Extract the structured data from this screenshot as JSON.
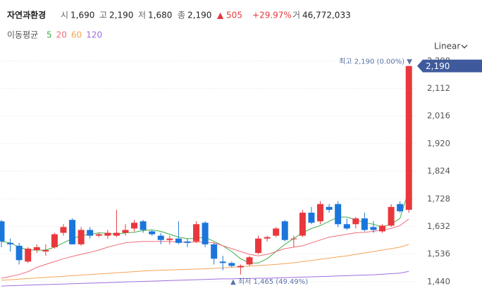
{
  "header": {
    "name": "자연과환경",
    "open_label": "시",
    "open": "1,690",
    "high_label": "고",
    "high": "2,190",
    "low_label": "저",
    "low": "1,680",
    "close_label": "종",
    "close": "2,190",
    "change": "▲ 505",
    "change_pct": "+29.97%",
    "volume_label": "거",
    "volume": "46,772,033"
  },
  "legend_title": "이동평균",
  "scale_menu": "Linear",
  "chart_data": {
    "type": "candlestick",
    "up_color": "#e8383d",
    "down_color": "#1b76db",
    "grid": true,
    "ylim": [
      1408,
      2248
    ],
    "yticks": [
      {
        "value": 1440,
        "label": "1,440"
      },
      {
        "value": 1536,
        "label": "1,536"
      },
      {
        "value": 1632,
        "label": "1,632"
      },
      {
        "value": 1728,
        "label": "1,728"
      },
      {
        "value": 1824,
        "label": "1,824"
      },
      {
        "value": 1920,
        "label": "1,920"
      },
      {
        "value": 2016,
        "label": "2,016"
      },
      {
        "value": 2112,
        "label": "2,112"
      },
      {
        "value": 2208,
        "label": "2,208"
      }
    ],
    "open": [
      1650,
      1575,
      1565,
      1510,
      1550,
      1545,
      1560,
      1610,
      1655,
      1570,
      1620,
      1600,
      1600,
      1600,
      1610,
      1625,
      1650,
      1615,
      1600,
      1585,
      1590,
      1580,
      1580,
      1645,
      1570,
      1510,
      1505,
      1490,
      1500,
      1540,
      1590,
      1600,
      1650,
      1590,
      1600,
      1680,
      1650,
      1700,
      1710,
      1640,
      1640,
      1660,
      1630,
      1615,
      1635,
      1710,
      1690
    ],
    "high": [
      1655,
      1590,
      1575,
      1560,
      1570,
      1570,
      1610,
      1640,
      1660,
      1630,
      1630,
      1610,
      1620,
      1690,
      1640,
      1655,
      1655,
      1620,
      1610,
      1600,
      1650,
      1590,
      1650,
      1650,
      1575,
      1530,
      1510,
      1500,
      1530,
      1600,
      1600,
      1630,
      1655,
      1600,
      1690,
      1700,
      1720,
      1710,
      1720,
      1660,
      1665,
      1680,
      1650,
      1640,
      1710,
      1720,
      2190
    ],
    "low": [
      1560,
      1545,
      1500,
      1505,
      1540,
      1530,
      1555,
      1600,
      1570,
      1565,
      1590,
      1595,
      1590,
      1595,
      1600,
      1615,
      1610,
      1600,
      1570,
      1570,
      1570,
      1560,
      1575,
      1560,
      1500,
      1480,
      1490,
      1465,
      1495,
      1535,
      1580,
      1595,
      1580,
      1560,
      1595,
      1640,
      1640,
      1680,
      1630,
      1620,
      1625,
      1615,
      1610,
      1610,
      1630,
      1680,
      1680
    ],
    "close": [
      1580,
      1570,
      1515,
      1555,
      1560,
      1550,
      1605,
      1630,
      1570,
      1620,
      1600,
      1605,
      1610,
      1610,
      1620,
      1645,
      1620,
      1605,
      1585,
      1590,
      1575,
      1575,
      1640,
      1570,
      1520,
      1505,
      1495,
      1495,
      1525,
      1590,
      1595,
      1625,
      1585,
      1590,
      1680,
      1645,
      1710,
      1690,
      1640,
      1625,
      1660,
      1620,
      1620,
      1635,
      1700,
      1685,
      2190
    ],
    "series": [
      {
        "name": "5",
        "color": "#3fae49",
        "values": [
          1580,
          1575,
          1560,
          1550,
          1550,
          1550,
          1560,
          1575,
          1590,
          1600,
          1605,
          1610,
          1608,
          1605,
          1610,
          1612,
          1618,
          1620,
          1615,
          1605,
          1595,
          1590,
          1590,
          1595,
          1580,
          1565,
          1545,
          1520,
          1505,
          1505,
          1520,
          1545,
          1570,
          1590,
          1610,
          1625,
          1635,
          1650,
          1665,
          1665,
          1655,
          1645,
          1640,
          1630,
          1640,
          1660,
          1760
        ]
      },
      {
        "name": "20",
        "color": "#f06e7a",
        "values": [
          1452,
          1458,
          1465,
          1475,
          1490,
          1500,
          1510,
          1520,
          1528,
          1535,
          1542,
          1550,
          1560,
          1568,
          1575,
          1578,
          1580,
          1580,
          1580,
          1580,
          1578,
          1578,
          1578,
          1578,
          1575,
          1565,
          1555,
          1545,
          1535,
          1530,
          1535,
          1545,
          1555,
          1560,
          1565,
          1575,
          1585,
          1595,
          1600,
          1605,
          1610,
          1612,
          1615,
          1620,
          1625,
          1635,
          1658
        ]
      },
      {
        "name": "60",
        "color": "#f5a456",
        "values": [
          1445,
          1447,
          1449,
          1451,
          1453,
          1455,
          1457,
          1459,
          1461,
          1463,
          1465,
          1467,
          1469,
          1471,
          1473,
          1475,
          1477,
          1479,
          1480,
          1481,
          1482,
          1483,
          1484,
          1485,
          1486,
          1488,
          1490,
          1492,
          1494,
          1496,
          1498,
          1500,
          1503,
          1506,
          1510,
          1514,
          1518,
          1522,
          1526,
          1530,
          1535,
          1540,
          1545,
          1550,
          1555,
          1560,
          1570
        ]
      },
      {
        "name": "120",
        "color": "#a06ee0",
        "values": [
          1425,
          1426,
          1427,
          1428,
          1429,
          1430,
          1431,
          1432,
          1433,
          1434,
          1435,
          1436,
          1437,
          1438,
          1439,
          1440,
          1441,
          1442,
          1443,
          1444,
          1445,
          1446,
          1447,
          1448,
          1449,
          1450,
          1450,
          1451,
          1451,
          1452,
          1452,
          1453,
          1454,
          1455,
          1456,
          1457,
          1458,
          1459,
          1460,
          1461,
          1462,
          1463,
          1464,
          1466,
          1468,
          1470,
          1476
        ]
      }
    ],
    "annotations": {
      "high_label": "최고 2,190 (0.00%) ▼",
      "low_label": "▲ 최저 1,465 (49.49%)",
      "last_price": "2,190"
    }
  }
}
